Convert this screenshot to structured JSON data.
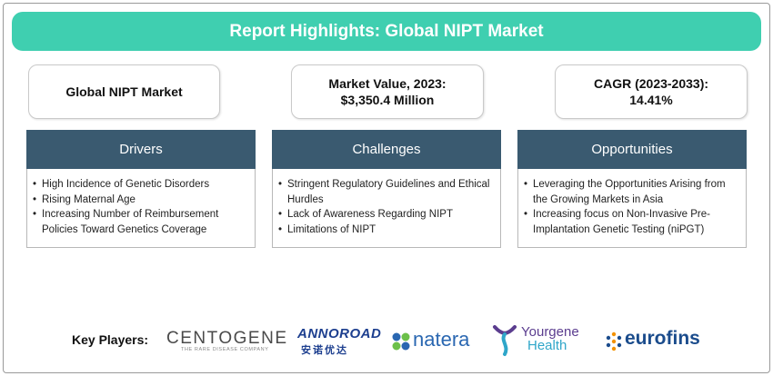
{
  "header": {
    "title": "Report Highlights: Global NIPT Market"
  },
  "cards": {
    "market": {
      "line1": "Global NIPT Market"
    },
    "value": {
      "line1": "Market Value, 2023:",
      "line2": "$3,350.4 Million"
    },
    "cagr": {
      "line1": "CAGR (2023-2033):",
      "line2": "14.41%"
    }
  },
  "columns": {
    "drivers": {
      "title": "Drivers",
      "items": [
        "High Incidence of Genetic Disorders",
        "Rising Maternal Age",
        "Increasing Number of Reimbursement Policies Toward Genetics Coverage"
      ]
    },
    "challenges": {
      "title": "Challenges",
      "items": [
        "Stringent Regulatory Guidelines and Ethical Hurdles",
        "Lack of Awareness Regarding NIPT",
        "Limitations of NIPT"
      ]
    },
    "opportunities": {
      "title": "Opportunities",
      "items": [
        "Leveraging the Opportunities Arising from the Growing Markets in Asia",
        "Increasing focus on Non-Invasive Pre-Implantation Genetic Testing (niPGT)"
      ]
    }
  },
  "players": {
    "label": "Key Players:",
    "logos": {
      "centogene": {
        "name": "CENTOGENE",
        "tagline": "THE RARE DISEASE COMPANY"
      },
      "annoroad": {
        "name": "ANNOROAD",
        "chinese": "安诺优达"
      },
      "natera": {
        "name": "natera"
      },
      "yourgene": {
        "name": "Yourgene",
        "sub": "Health"
      },
      "eurofins": {
        "name": "eurofins"
      }
    }
  },
  "colors": {
    "title_bar": "#3fcfb0",
    "column_header": "#3a5a70",
    "card_border": "#c9c9c9"
  }
}
